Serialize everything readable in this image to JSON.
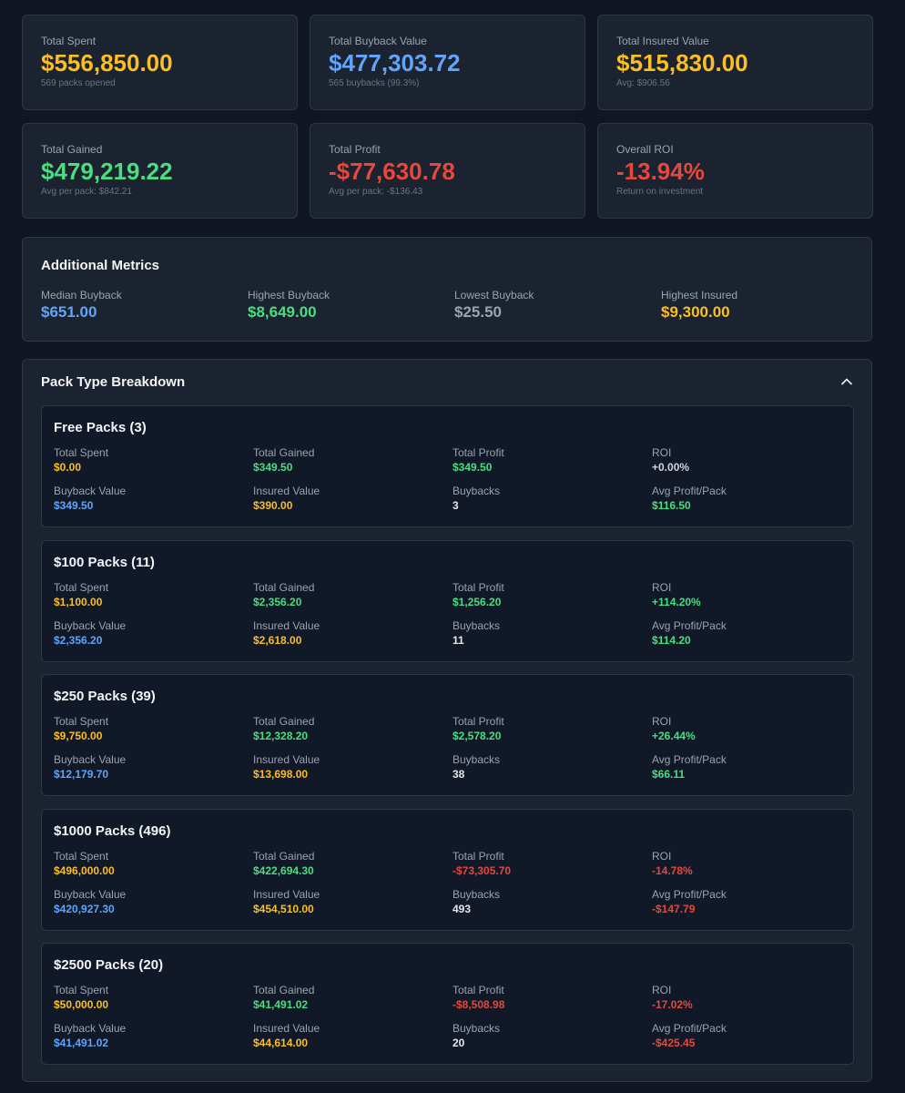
{
  "cards": [
    {
      "label": "Total Spent",
      "value": "$556,850.00",
      "note": "569 packs opened",
      "color": "#fbbf24"
    },
    {
      "label": "Total Buyback Value",
      "value": "$477,303.72",
      "note": "565 buybacks (99.3%)",
      "color": "#60a5fa"
    },
    {
      "label": "Total Insured Value",
      "value": "$515,830.00",
      "note": "Avg: $906.56",
      "color": "#fbbf24"
    },
    {
      "label": "Total Gained",
      "value": "$479,219.22",
      "note": "Avg per pack: $842.21",
      "color": "#4ade80"
    },
    {
      "label": "Total Profit",
      "value": "-$77,630.78",
      "note": "Avg per pack: -$136.43",
      "color": "#e5483c"
    },
    {
      "label": "Overall ROI",
      "value": "-13.94%",
      "note": "Return on investment",
      "color": "#e5483c"
    }
  ],
  "metrics": {
    "title": "Additional Metrics",
    "items": [
      {
        "label": "Median Buyback",
        "value": "$651.00",
        "color": "#60a5fa"
      },
      {
        "label": "Highest Buyback",
        "value": "$8,649.00",
        "color": "#4ade80"
      },
      {
        "label": "Lowest Buyback",
        "value": "$25.50",
        "color": "#9ca3af"
      },
      {
        "label": "Highest Insured",
        "value": "$9,300.00",
        "color": "#fbbf24"
      }
    ]
  },
  "breakdown": {
    "title": "Pack Type Breakdown",
    "packs": [
      {
        "name": "Free Packs (3)",
        "fields": [
          {
            "label": "Total Spent",
            "value": "$0.00",
            "color": "#fbbf24"
          },
          {
            "label": "Total Gained",
            "value": "$349.50",
            "color": "#4ade80"
          },
          {
            "label": "Total Profit",
            "value": "$349.50",
            "color": "#4ade80"
          },
          {
            "label": "ROI",
            "value": "+0.00%",
            "color": "#d1d5db"
          },
          {
            "label": "Buyback Value",
            "value": "$349.50",
            "color": "#60a5fa"
          },
          {
            "label": "Insured Value",
            "value": "$390.00",
            "color": "#fbbf24"
          },
          {
            "label": "Buybacks",
            "value": "3",
            "color": "#e5e7eb"
          },
          {
            "label": "Avg Profit/Pack",
            "value": "$116.50",
            "color": "#4ade80"
          }
        ]
      },
      {
        "name": "$100 Packs (11)",
        "fields": [
          {
            "label": "Total Spent",
            "value": "$1,100.00",
            "color": "#fbbf24"
          },
          {
            "label": "Total Gained",
            "value": "$2,356.20",
            "color": "#4ade80"
          },
          {
            "label": "Total Profit",
            "value": "$1,256.20",
            "color": "#4ade80"
          },
          {
            "label": "ROI",
            "value": "+114.20%",
            "color": "#4ade80"
          },
          {
            "label": "Buyback Value",
            "value": "$2,356.20",
            "color": "#60a5fa"
          },
          {
            "label": "Insured Value",
            "value": "$2,618.00",
            "color": "#fbbf24"
          },
          {
            "label": "Buybacks",
            "value": "11",
            "color": "#e5e7eb"
          },
          {
            "label": "Avg Profit/Pack",
            "value": "$114.20",
            "color": "#4ade80"
          }
        ]
      },
      {
        "name": "$250 Packs (39)",
        "fields": [
          {
            "label": "Total Spent",
            "value": "$9,750.00",
            "color": "#fbbf24"
          },
          {
            "label": "Total Gained",
            "value": "$12,328.20",
            "color": "#4ade80"
          },
          {
            "label": "Total Profit",
            "value": "$2,578.20",
            "color": "#4ade80"
          },
          {
            "label": "ROI",
            "value": "+26.44%",
            "color": "#4ade80"
          },
          {
            "label": "Buyback Value",
            "value": "$12,179.70",
            "color": "#60a5fa"
          },
          {
            "label": "Insured Value",
            "value": "$13,698.00",
            "color": "#fbbf24"
          },
          {
            "label": "Buybacks",
            "value": "38",
            "color": "#e5e7eb"
          },
          {
            "label": "Avg Profit/Pack",
            "value": "$66.11",
            "color": "#4ade80"
          }
        ]
      },
      {
        "name": "$1000 Packs (496)",
        "fields": [
          {
            "label": "Total Spent",
            "value": "$496,000.00",
            "color": "#fbbf24"
          },
          {
            "label": "Total Gained",
            "value": "$422,694.30",
            "color": "#4ade80"
          },
          {
            "label": "Total Profit",
            "value": "-$73,305.70",
            "color": "#e5483c"
          },
          {
            "label": "ROI",
            "value": "-14.78%",
            "color": "#e5483c"
          },
          {
            "label": "Buyback Value",
            "value": "$420,927.30",
            "color": "#60a5fa"
          },
          {
            "label": "Insured Value",
            "value": "$454,510.00",
            "color": "#fbbf24"
          },
          {
            "label": "Buybacks",
            "value": "493",
            "color": "#e5e7eb"
          },
          {
            "label": "Avg Profit/Pack",
            "value": "-$147.79",
            "color": "#e5483c"
          }
        ]
      },
      {
        "name": "$2500 Packs (20)",
        "fields": [
          {
            "label": "Total Spent",
            "value": "$50,000.00",
            "color": "#fbbf24"
          },
          {
            "label": "Total Gained",
            "value": "$41,491.02",
            "color": "#4ade80"
          },
          {
            "label": "Total Profit",
            "value": "-$8,508.98",
            "color": "#e5483c"
          },
          {
            "label": "ROI",
            "value": "-17.02%",
            "color": "#e5483c"
          },
          {
            "label": "Buyback Value",
            "value": "$41,491.02",
            "color": "#60a5fa"
          },
          {
            "label": "Insured Value",
            "value": "$44,614.00",
            "color": "#fbbf24"
          },
          {
            "label": "Buybacks",
            "value": "20",
            "color": "#e5e7eb"
          },
          {
            "label": "Avg Profit/Pack",
            "value": "-$425.45",
            "color": "#e5483c"
          }
        ]
      }
    ]
  }
}
